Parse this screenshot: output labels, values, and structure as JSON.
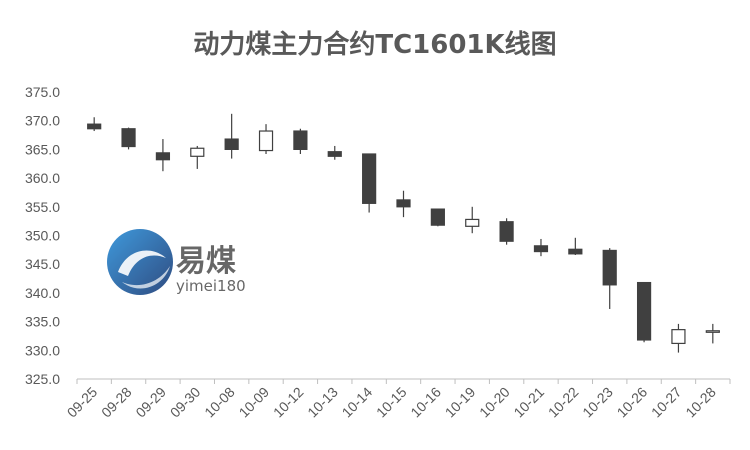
{
  "chart_data": {
    "type": "candlestick",
    "title": "动力煤主力合约TC1601K线图",
    "xlabel": "",
    "ylabel": "",
    "ylim": [
      325,
      375
    ],
    "yticks": [
      "325.0",
      "330.0",
      "335.0",
      "340.0",
      "345.0",
      "350.0",
      "355.0",
      "360.0",
      "365.0",
      "370.0",
      "375.0"
    ],
    "grid": false,
    "legend": "none",
    "up_color": "#ffffff",
    "down_color": "#404040",
    "categories": [
      "09-25",
      "09-28",
      "09-29",
      "09-30",
      "10-08",
      "10-09",
      "10-12",
      "10-13",
      "10-14",
      "10-15",
      "10-16",
      "10-19",
      "10-20",
      "10-21",
      "10-22",
      "10-23",
      "10-26",
      "10-27",
      "10-28"
    ],
    "series": [
      {
        "candles": [
          {
            "open": 369.4,
            "high": 370.6,
            "low": 368.2,
            "close": 368.6
          },
          {
            "open": 368.6,
            "high": 368.8,
            "low": 365.0,
            "close": 365.5
          },
          {
            "open": 364.4,
            "high": 366.8,
            "low": 361.2,
            "close": 363.2
          },
          {
            "open": 363.8,
            "high": 365.6,
            "low": 361.6,
            "close": 365.2
          },
          {
            "open": 366.8,
            "high": 371.2,
            "low": 363.4,
            "close": 365.0
          },
          {
            "open": 364.8,
            "high": 369.4,
            "low": 364.2,
            "close": 368.2
          },
          {
            "open": 368.2,
            "high": 368.6,
            "low": 364.2,
            "close": 365.0
          },
          {
            "open": 364.6,
            "high": 365.6,
            "low": 363.2,
            "close": 363.8
          },
          {
            "open": 364.2,
            "high": 364.2,
            "low": 354.0,
            "close": 355.6
          },
          {
            "open": 356.2,
            "high": 357.8,
            "low": 353.2,
            "close": 355.0
          },
          {
            "open": 354.6,
            "high": 354.6,
            "low": 351.6,
            "close": 351.8
          },
          {
            "open": 351.6,
            "high": 355.0,
            "low": 350.4,
            "close": 352.8
          },
          {
            "open": 352.4,
            "high": 353.0,
            "low": 348.4,
            "close": 349.0
          },
          {
            "open": 348.2,
            "high": 349.4,
            "low": 346.4,
            "close": 347.2
          },
          {
            "open": 347.6,
            "high": 349.6,
            "low": 346.6,
            "close": 346.8
          },
          {
            "open": 347.4,
            "high": 347.8,
            "low": 337.2,
            "close": 341.4
          },
          {
            "open": 341.8,
            "high": 341.8,
            "low": 331.4,
            "close": 331.8
          },
          {
            "open": 331.2,
            "high": 334.6,
            "low": 329.6,
            "close": 333.6
          },
          {
            "open": 333.2,
            "high": 334.6,
            "low": 331.2,
            "close": 333.4
          }
        ]
      }
    ]
  },
  "watermark": {
    "brand": "易煤",
    "site": "yimei180",
    "colors": [
      "#1e88d6",
      "#0b2d6b"
    ]
  }
}
